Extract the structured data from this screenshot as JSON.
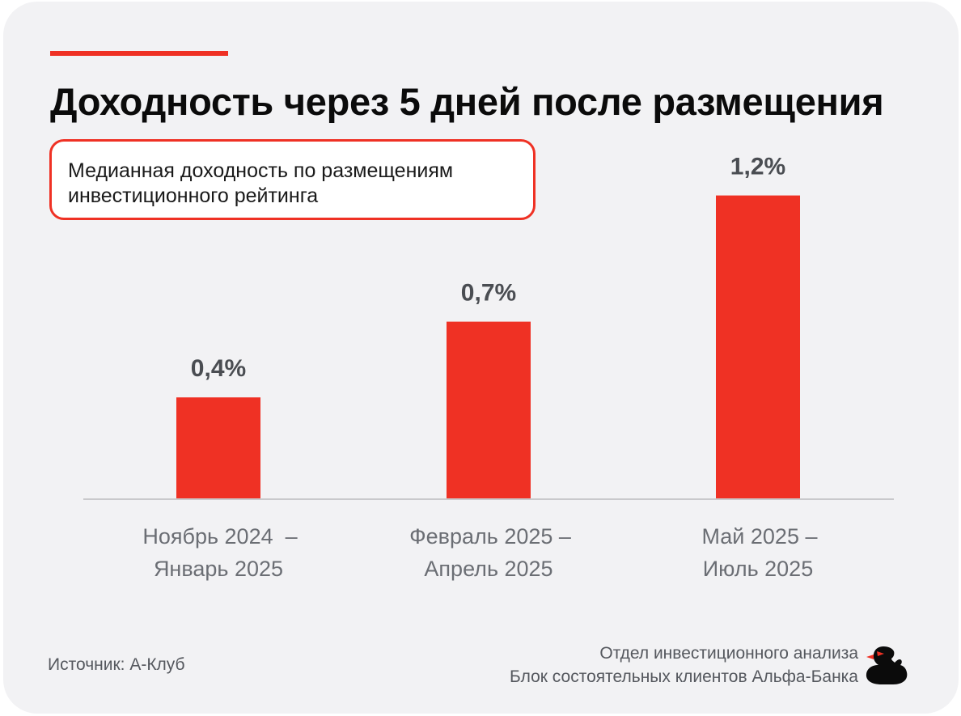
{
  "header": {
    "title": "Доходность через 5 дней после размещения",
    "subtitle_line1": "Медианная доходность по размещениям",
    "subtitle_line2": "инвестиционного рейтинга"
  },
  "chart_data": {
    "type": "bar",
    "title": "Доходность через 5 дней после размещения",
    "subtitle": "Медианная доходность по размещениям инвестиционного рейтинга",
    "categories": [
      [
        "Ноябрь 2024  –",
        "Январь 2025"
      ],
      [
        "Февраль 2025 –",
        "Апрель 2025"
      ],
      [
        "Май 2025 –",
        "Июль 2025"
      ]
    ],
    "values": [
      0.4,
      0.7,
      1.2
    ],
    "value_labels": [
      "0,4%",
      "0,7%",
      "1,2%"
    ],
    "ylim": [
      0,
      1.25
    ],
    "grid": false,
    "bar_color": "#ef3124",
    "xlabel": "",
    "ylabel": ""
  },
  "footer": {
    "source": "Источник: А-Клуб",
    "dept_line1": "Отдел инвестиционного анализа",
    "dept_line2": "Блок состоятельных клиентов Альфа-Банка",
    "logo_icon": "duck-icon"
  },
  "colors": {
    "accent": "#ef3124",
    "background": "#f2f2f4",
    "text_dark": "#0b0b0b",
    "text_muted": "#55585e"
  }
}
